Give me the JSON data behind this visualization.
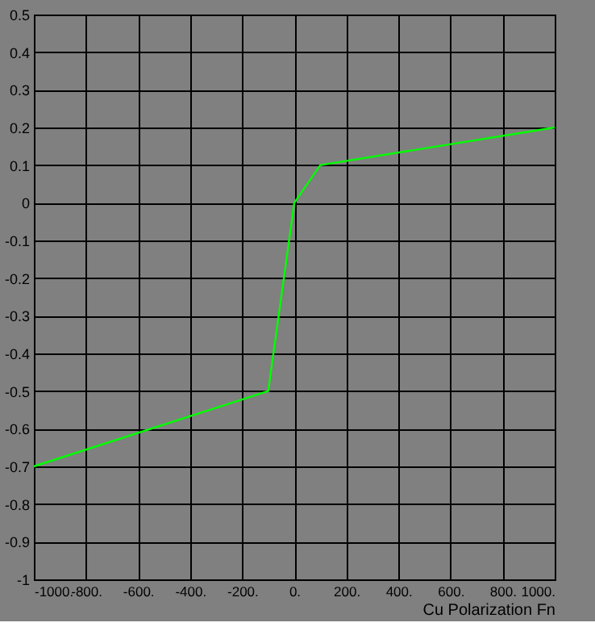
{
  "chart_data": {
    "type": "line",
    "xlabel": "Cu Polarization Fn",
    "x": [
      -1000,
      -100,
      0,
      100,
      1000
    ],
    "series": [
      {
        "color": "#00ff00",
        "values": [
          -0.7,
          -0.5,
          0,
          0.1,
          0.2
        ]
      }
    ],
    "xlim": [
      -1000,
      1000
    ],
    "xticks": [
      {
        "value": -1000,
        "label": "-1000."
      },
      {
        "value": -800,
        "label": "-800."
      },
      {
        "value": -600,
        "label": "-600."
      },
      {
        "value": -400,
        "label": "-400."
      },
      {
        "value": -200,
        "label": "-200."
      },
      {
        "value": 0,
        "label": "0."
      },
      {
        "value": 200,
        "label": "200."
      },
      {
        "value": 400,
        "label": "400."
      },
      {
        "value": 600,
        "label": "600."
      },
      {
        "value": 800,
        "label": "800."
      },
      {
        "value": 1000,
        "label": "1000."
      }
    ],
    "ylim": [
      -1,
      0.5
    ],
    "yticks": [
      -1,
      -0.9,
      -0.8,
      -0.7,
      -0.6,
      -0.5,
      -0.4,
      -0.3,
      -0.2,
      -0.1,
      0,
      0.1,
      0.2,
      0.3,
      0.4,
      0.5
    ],
    "grid": true,
    "marker": "none",
    "line_style": "solid",
    "legend": false
  }
}
